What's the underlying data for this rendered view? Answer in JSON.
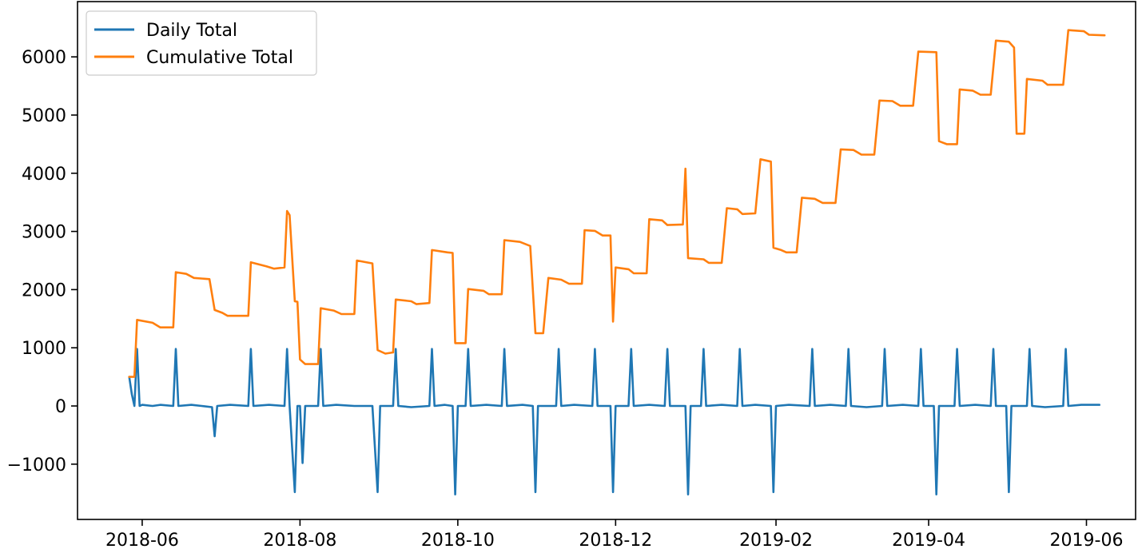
{
  "chart_data": {
    "type": "line",
    "xlabel": "",
    "ylabel": "",
    "x_axis_type": "date",
    "xlim": [
      "2018-05-07",
      "2019-06-20"
    ],
    "ylim": [
      -1950,
      6950
    ],
    "x_ticks": [
      "2018-06-01",
      "2018-08-01",
      "2018-10-01",
      "2018-12-01",
      "2019-02-01",
      "2019-04-01",
      "2019-06-01"
    ],
    "x_tick_labels": [
      "2018-06",
      "2018-08",
      "2018-10",
      "2018-12",
      "2019-02",
      "2019-04",
      "2019-06"
    ],
    "y_ticks": [
      -1000,
      0,
      1000,
      2000,
      3000,
      4000,
      5000,
      6000
    ],
    "y_tick_labels": [
      "−1000",
      "0",
      "1000",
      "2000",
      "3000",
      "4000",
      "5000",
      "6000"
    ],
    "legend": {
      "position": "top-left"
    },
    "grid": false,
    "series": [
      {
        "name": "Daily Total",
        "color": "#1f77b4",
        "points": [
          [
            "2018-05-27",
            500
          ],
          [
            "2018-05-28",
            200
          ],
          [
            "2018-05-29",
            0
          ],
          [
            "2018-05-30",
            980
          ],
          [
            "2018-05-31",
            0
          ],
          [
            "2018-06-01",
            20
          ],
          [
            "2018-06-05",
            0
          ],
          [
            "2018-06-08",
            20
          ],
          [
            "2018-06-13",
            0
          ],
          [
            "2018-06-14",
            980
          ],
          [
            "2018-06-15",
            0
          ],
          [
            "2018-06-20",
            20
          ],
          [
            "2018-06-24",
            0
          ],
          [
            "2018-06-28",
            -20
          ],
          [
            "2018-06-29",
            -520
          ],
          [
            "2018-06-30",
            0
          ],
          [
            "2018-07-05",
            20
          ],
          [
            "2018-07-12",
            0
          ],
          [
            "2018-07-13",
            980
          ],
          [
            "2018-07-14",
            0
          ],
          [
            "2018-07-20",
            20
          ],
          [
            "2018-07-26",
            0
          ],
          [
            "2018-07-27",
            980
          ],
          [
            "2018-07-28",
            0
          ],
          [
            "2018-07-30",
            -1480
          ],
          [
            "2018-07-31",
            0
          ],
          [
            "2018-08-01",
            0
          ],
          [
            "2018-08-02",
            -980
          ],
          [
            "2018-08-03",
            0
          ],
          [
            "2018-08-08",
            0
          ],
          [
            "2018-08-09",
            980
          ],
          [
            "2018-08-10",
            0
          ],
          [
            "2018-08-15",
            20
          ],
          [
            "2018-08-22",
            0
          ],
          [
            "2018-08-29",
            0
          ],
          [
            "2018-08-31",
            -1480
          ],
          [
            "2018-09-01",
            0
          ],
          [
            "2018-09-06",
            0
          ],
          [
            "2018-09-07",
            980
          ],
          [
            "2018-09-08",
            0
          ],
          [
            "2018-09-13",
            -20
          ],
          [
            "2018-09-20",
            0
          ],
          [
            "2018-09-21",
            980
          ],
          [
            "2018-09-22",
            0
          ],
          [
            "2018-09-26",
            20
          ],
          [
            "2018-09-29",
            0
          ],
          [
            "2018-09-30",
            -1520
          ],
          [
            "2018-10-01",
            0
          ],
          [
            "2018-10-04",
            0
          ],
          [
            "2018-10-05",
            980
          ],
          [
            "2018-10-06",
            0
          ],
          [
            "2018-10-12",
            20
          ],
          [
            "2018-10-18",
            0
          ],
          [
            "2018-10-19",
            980
          ],
          [
            "2018-10-20",
            0
          ],
          [
            "2018-10-26",
            20
          ],
          [
            "2018-10-30",
            0
          ],
          [
            "2018-10-31",
            -1480
          ],
          [
            "2018-11-01",
            0
          ],
          [
            "2018-11-08",
            0
          ],
          [
            "2018-11-09",
            980
          ],
          [
            "2018-11-10",
            0
          ],
          [
            "2018-11-15",
            20
          ],
          [
            "2018-11-22",
            0
          ],
          [
            "2018-11-23",
            980
          ],
          [
            "2018-11-24",
            0
          ],
          [
            "2018-11-29",
            0
          ],
          [
            "2018-11-30",
            -1480
          ],
          [
            "2018-12-01",
            0
          ],
          [
            "2018-12-06",
            0
          ],
          [
            "2018-12-07",
            980
          ],
          [
            "2018-12-08",
            0
          ],
          [
            "2018-12-14",
            20
          ],
          [
            "2018-12-20",
            0
          ],
          [
            "2018-12-21",
            980
          ],
          [
            "2018-12-22",
            0
          ],
          [
            "2018-12-28",
            0
          ],
          [
            "2018-12-29",
            -1520
          ],
          [
            "2018-12-30",
            0
          ],
          [
            "2019-01-03",
            0
          ],
          [
            "2019-01-04",
            980
          ],
          [
            "2019-01-05",
            0
          ],
          [
            "2019-01-11",
            20
          ],
          [
            "2019-01-17",
            0
          ],
          [
            "2019-01-18",
            980
          ],
          [
            "2019-01-19",
            0
          ],
          [
            "2019-01-24",
            20
          ],
          [
            "2019-01-30",
            0
          ],
          [
            "2019-01-31",
            -1480
          ],
          [
            "2019-02-01",
            0
          ],
          [
            "2019-02-06",
            20
          ],
          [
            "2019-02-14",
            0
          ],
          [
            "2019-02-15",
            980
          ],
          [
            "2019-02-16",
            0
          ],
          [
            "2019-02-22",
            20
          ],
          [
            "2019-02-28",
            0
          ],
          [
            "2019-03-01",
            980
          ],
          [
            "2019-03-02",
            0
          ],
          [
            "2019-03-08",
            -20
          ],
          [
            "2019-03-14",
            0
          ],
          [
            "2019-03-15",
            980
          ],
          [
            "2019-03-16",
            0
          ],
          [
            "2019-03-22",
            20
          ],
          [
            "2019-03-28",
            0
          ],
          [
            "2019-03-29",
            980
          ],
          [
            "2019-03-30",
            0
          ],
          [
            "2019-04-03",
            0
          ],
          [
            "2019-04-04",
            -1520
          ],
          [
            "2019-04-05",
            0
          ],
          [
            "2019-04-11",
            0
          ],
          [
            "2019-04-12",
            980
          ],
          [
            "2019-04-13",
            0
          ],
          [
            "2019-04-19",
            20
          ],
          [
            "2019-04-25",
            0
          ],
          [
            "2019-04-26",
            980
          ],
          [
            "2019-04-27",
            0
          ],
          [
            "2019-05-01",
            0
          ],
          [
            "2019-05-02",
            -1480
          ],
          [
            "2019-05-03",
            0
          ],
          [
            "2019-05-09",
            0
          ],
          [
            "2019-05-10",
            980
          ],
          [
            "2019-05-11",
            0
          ],
          [
            "2019-05-16",
            -20
          ],
          [
            "2019-05-23",
            0
          ],
          [
            "2019-05-24",
            980
          ],
          [
            "2019-05-25",
            0
          ],
          [
            "2019-05-30",
            20
          ],
          [
            "2019-06-06",
            20
          ]
        ]
      },
      {
        "name": "Cumulative Total",
        "color": "#ff7f0e",
        "points": [
          [
            "2018-05-27",
            500
          ],
          [
            "2018-05-29",
            500
          ],
          [
            "2018-05-30",
            1480
          ],
          [
            "2018-06-05",
            1430
          ],
          [
            "2018-06-08",
            1350
          ],
          [
            "2018-06-13",
            1350
          ],
          [
            "2018-06-14",
            2300
          ],
          [
            "2018-06-18",
            2270
          ],
          [
            "2018-06-21",
            2200
          ],
          [
            "2018-06-27",
            2180
          ],
          [
            "2018-06-29",
            1650
          ],
          [
            "2018-07-02",
            1600
          ],
          [
            "2018-07-04",
            1550
          ],
          [
            "2018-07-12",
            1550
          ],
          [
            "2018-07-13",
            2470
          ],
          [
            "2018-07-19",
            2400
          ],
          [
            "2018-07-22",
            2360
          ],
          [
            "2018-07-26",
            2380
          ],
          [
            "2018-07-27",
            3350
          ],
          [
            "2018-07-28",
            3280
          ],
          [
            "2018-07-30",
            1800
          ],
          [
            "2018-07-31",
            1790
          ],
          [
            "2018-08-01",
            800
          ],
          [
            "2018-08-03",
            720
          ],
          [
            "2018-08-08",
            720
          ],
          [
            "2018-08-09",
            1680
          ],
          [
            "2018-08-14",
            1640
          ],
          [
            "2018-08-17",
            1580
          ],
          [
            "2018-08-22",
            1580
          ],
          [
            "2018-08-23",
            2500
          ],
          [
            "2018-08-29",
            2450
          ],
          [
            "2018-08-31",
            960
          ],
          [
            "2018-09-03",
            900
          ],
          [
            "2018-09-06",
            920
          ],
          [
            "2018-09-07",
            1830
          ],
          [
            "2018-09-13",
            1800
          ],
          [
            "2018-09-15",
            1750
          ],
          [
            "2018-09-20",
            1770
          ],
          [
            "2018-09-21",
            2680
          ],
          [
            "2018-09-27",
            2640
          ],
          [
            "2018-09-29",
            2630
          ],
          [
            "2018-09-30",
            1080
          ],
          [
            "2018-10-04",
            1080
          ],
          [
            "2018-10-05",
            2010
          ],
          [
            "2018-10-11",
            1980
          ],
          [
            "2018-10-13",
            1920
          ],
          [
            "2018-10-18",
            1920
          ],
          [
            "2018-10-19",
            2850
          ],
          [
            "2018-10-25",
            2820
          ],
          [
            "2018-10-29",
            2750
          ],
          [
            "2018-10-31",
            1250
          ],
          [
            "2018-11-03",
            1250
          ],
          [
            "2018-11-05",
            2200
          ],
          [
            "2018-11-10",
            2170
          ],
          [
            "2018-11-13",
            2100
          ],
          [
            "2018-11-18",
            2100
          ],
          [
            "2018-11-19",
            3020
          ],
          [
            "2018-11-23",
            3010
          ],
          [
            "2018-11-26",
            2930
          ],
          [
            "2018-11-29",
            2930
          ],
          [
            "2018-11-30",
            1450
          ],
          [
            "2018-12-01",
            2380
          ],
          [
            "2018-12-06",
            2350
          ],
          [
            "2018-12-08",
            2280
          ],
          [
            "2018-12-13",
            2280
          ],
          [
            "2018-12-14",
            3210
          ],
          [
            "2018-12-19",
            3190
          ],
          [
            "2018-12-21",
            3110
          ],
          [
            "2018-12-27",
            3120
          ],
          [
            "2018-12-28",
            4080
          ],
          [
            "2018-12-29",
            2540
          ],
          [
            "2019-01-04",
            2520
          ],
          [
            "2019-01-06",
            2460
          ],
          [
            "2019-01-11",
            2460
          ],
          [
            "2019-01-13",
            3400
          ],
          [
            "2019-01-17",
            3380
          ],
          [
            "2019-01-19",
            3300
          ],
          [
            "2019-01-24",
            3310
          ],
          [
            "2019-01-26",
            4240
          ],
          [
            "2019-01-30",
            4200
          ],
          [
            "2019-01-31",
            2720
          ],
          [
            "2019-02-03",
            2680
          ],
          [
            "2019-02-05",
            2640
          ],
          [
            "2019-02-09",
            2640
          ],
          [
            "2019-02-11",
            3580
          ],
          [
            "2019-02-16",
            3560
          ],
          [
            "2019-02-19",
            3490
          ],
          [
            "2019-02-24",
            3490
          ],
          [
            "2019-02-26",
            4410
          ],
          [
            "2019-03-03",
            4400
          ],
          [
            "2019-03-06",
            4320
          ],
          [
            "2019-03-11",
            4320
          ],
          [
            "2019-03-13",
            5250
          ],
          [
            "2019-03-18",
            5240
          ],
          [
            "2019-03-21",
            5160
          ],
          [
            "2019-03-26",
            5160
          ],
          [
            "2019-03-28",
            6090
          ],
          [
            "2019-04-04",
            6080
          ],
          [
            "2019-04-05",
            4550
          ],
          [
            "2019-04-08",
            4500
          ],
          [
            "2019-04-12",
            4500
          ],
          [
            "2019-04-13",
            5440
          ],
          [
            "2019-04-18",
            5420
          ],
          [
            "2019-04-21",
            5350
          ],
          [
            "2019-04-25",
            5350
          ],
          [
            "2019-04-27",
            6280
          ],
          [
            "2019-05-02",
            6260
          ],
          [
            "2019-05-04",
            6160
          ],
          [
            "2019-05-05",
            4680
          ],
          [
            "2019-05-08",
            4680
          ],
          [
            "2019-05-09",
            5620
          ],
          [
            "2019-05-15",
            5590
          ],
          [
            "2019-05-17",
            5520
          ],
          [
            "2019-05-23",
            5520
          ],
          [
            "2019-05-25",
            6460
          ],
          [
            "2019-05-31",
            6440
          ],
          [
            "2019-06-02",
            6380
          ],
          [
            "2019-06-08",
            6370
          ]
        ]
      }
    ]
  }
}
